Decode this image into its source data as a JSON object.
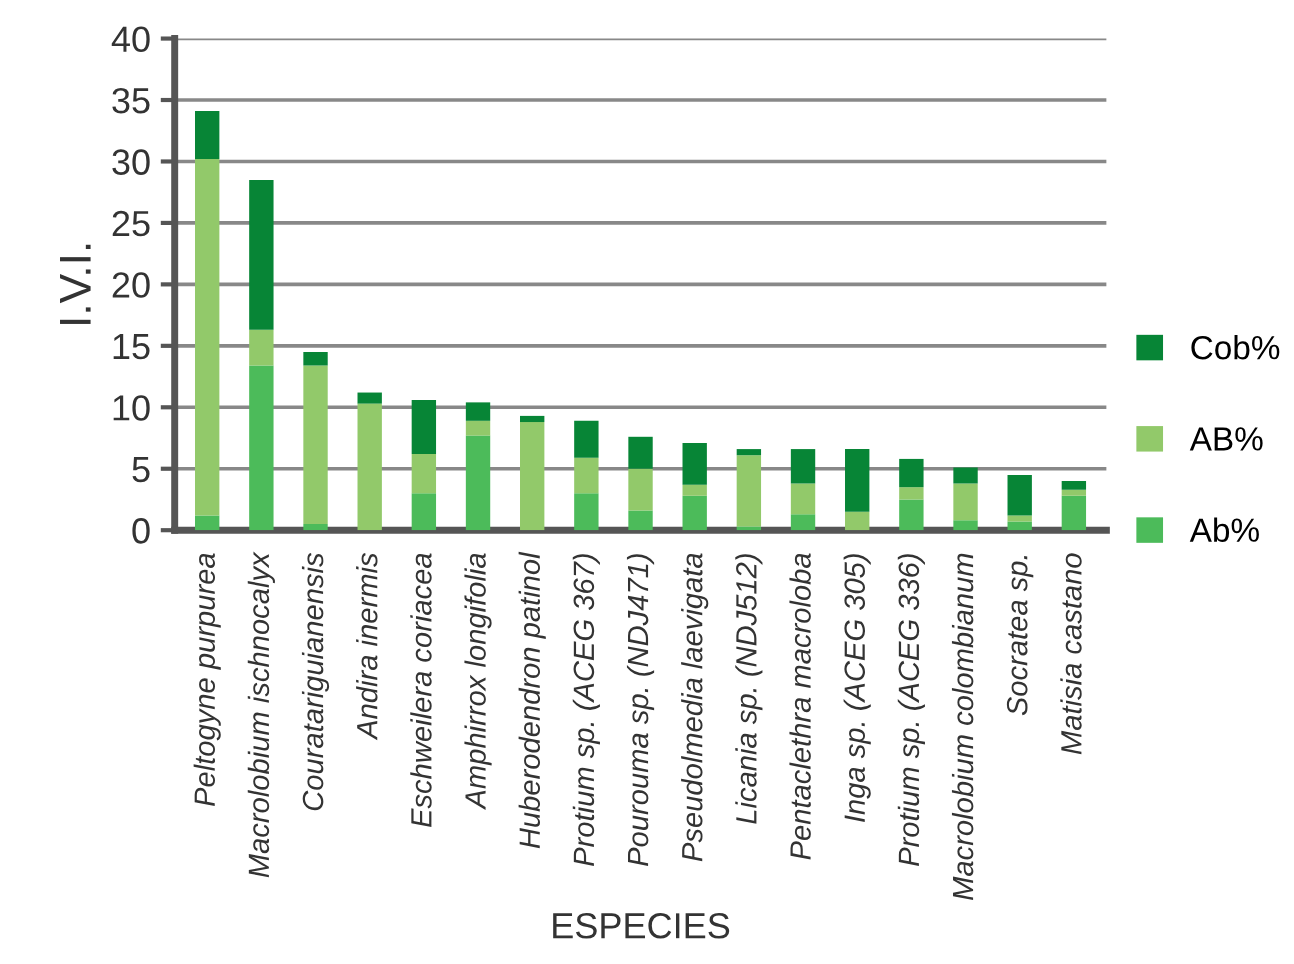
{
  "chart_data": {
    "type": "bar",
    "stacked": true,
    "xlabel": "ESPECIES",
    "ylabel": "I.V.I.",
    "categories": [
      "Peltogyne purpurea",
      "Macrolobium ischnocalyx",
      "Couratariguianensis",
      "Andira inermis",
      "Eschweilera coriacea",
      "Amphirrox longifolia",
      "Huberodendron patinol",
      "Protium sp. (ACEG 367)",
      "Pourouma sp. (NDJ471)",
      "Pseudolmedia laevigata",
      "Licania sp. (NDJ512)",
      "Pentaclethra macroloba",
      "Inga sp. (ACEG 305)",
      "Protium sp. (ACEG 336)",
      "Macrolobium colombianum",
      "Socratea sp.",
      "Matisia castano"
    ],
    "series": [
      {
        "name": "Ab%",
        "color": "#4cbb5a",
        "values": [
          1.2,
          13.4,
          0.5,
          0,
          3.0,
          7.7,
          0,
          3.0,
          1.6,
          2.8,
          0.3,
          1.3,
          0,
          2.5,
          0.8,
          0.7,
          2.8
        ]
      },
      {
        "name": "AB%",
        "color": "#92c96a",
        "values": [
          29.0,
          2.9,
          12.9,
          10.3,
          3.2,
          1.2,
          8.8,
          2.9,
          3.4,
          0.9,
          5.8,
          2.5,
          1.5,
          1.0,
          3.0,
          0.5,
          0.5
        ]
      },
      {
        "name": "Cob%",
        "color": "#078536",
        "values": [
          3.9,
          12.2,
          1.1,
          0.9,
          4.4,
          1.5,
          0.5,
          3.0,
          2.6,
          3.4,
          0.5,
          2.8,
          5.1,
          2.3,
          1.3,
          3.3,
          0.7
        ]
      }
    ],
    "ylim": [
      0,
      40
    ],
    "yticks": [
      0,
      5,
      10,
      15,
      20,
      25,
      30,
      35,
      40
    ],
    "grid": "y",
    "legend": "right"
  }
}
